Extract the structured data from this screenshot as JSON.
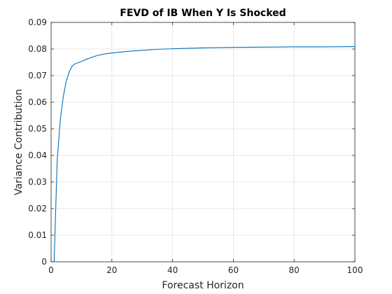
{
  "chart_data": {
    "type": "line",
    "title": "FEVD of IB When Y Is Shocked",
    "xlabel": "Forecast Horizon",
    "ylabel": "Variance Contribution",
    "xlim": [
      0,
      100
    ],
    "ylim": [
      0,
      0.09
    ],
    "xticks": [
      "0",
      "20",
      "40",
      "60",
      "80",
      "100"
    ],
    "yticks": [
      "0",
      "0.01",
      "0.02",
      "0.03",
      "0.04",
      "0.05",
      "0.06",
      "0.07",
      "0.08",
      "0.09"
    ],
    "grid": true,
    "line_color": "#0072BD",
    "series": [
      {
        "x": [
          1,
          2,
          3,
          4,
          5,
          6,
          7,
          8,
          10,
          12,
          15,
          18,
          20,
          25,
          30,
          35,
          40,
          50,
          60,
          70,
          80,
          90,
          100
        ],
        "values": [
          0.0,
          0.038,
          0.053,
          0.062,
          0.068,
          0.0715,
          0.0737,
          0.0745,
          0.0753,
          0.0763,
          0.0775,
          0.0782,
          0.0785,
          0.0791,
          0.0795,
          0.0799,
          0.0801,
          0.0804,
          0.0806,
          0.0807,
          0.0808,
          0.0808,
          0.0809
        ]
      }
    ]
  }
}
